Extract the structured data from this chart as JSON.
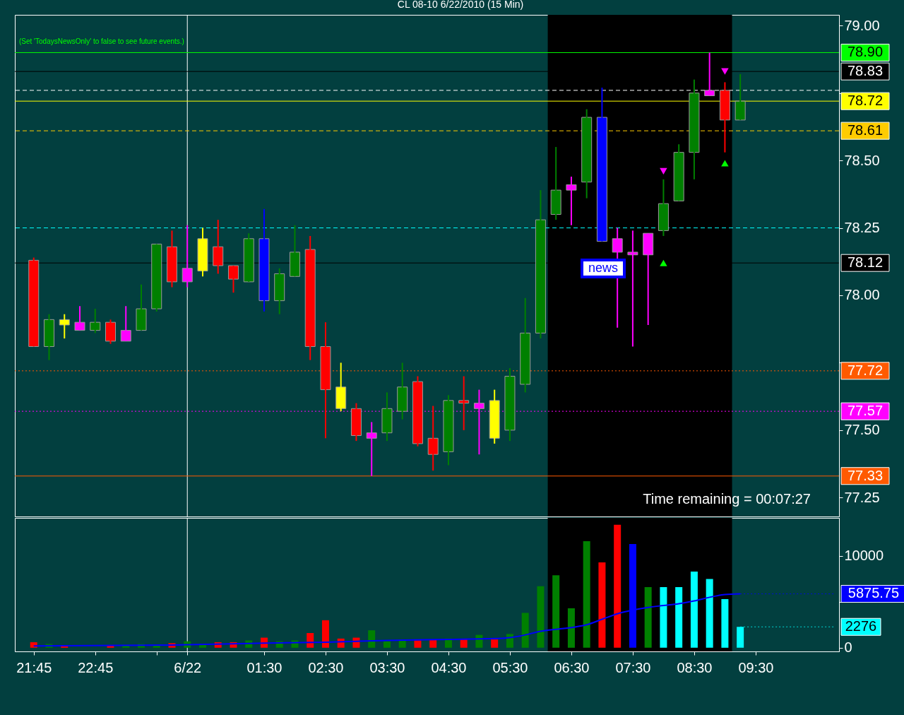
{
  "chart_data": [
    {
      "type": "candlestick",
      "title": "CL 08-10  6/22/2010 (15 Min)",
      "x": [
        "2010-06-21T21:45",
        "2010-06-21T22:00",
        "2010-06-21T22:15",
        "2010-06-21T22:30",
        "2010-06-21T22:45",
        "2010-06-21T23:00",
        "2010-06-21T23:15",
        "2010-06-21T23:30",
        "2010-06-21T23:45",
        "2010-06-22T00:00",
        "2010-06-22T00:15",
        "2010-06-22T00:30",
        "2010-06-22T00:45",
        "2010-06-22T01:00",
        "2010-06-22T01:15",
        "2010-06-22T01:30",
        "2010-06-22T01:45",
        "2010-06-22T02:00",
        "2010-06-22T02:15",
        "2010-06-22T02:30",
        "2010-06-22T02:45",
        "2010-06-22T03:00",
        "2010-06-22T03:15",
        "2010-06-22T03:30",
        "2010-06-22T03:45",
        "2010-06-22T04:00",
        "2010-06-22T04:15",
        "2010-06-22T04:30",
        "2010-06-22T04:45",
        "2010-06-22T05:00",
        "2010-06-22T05:15",
        "2010-06-22T05:30",
        "2010-06-22T05:45",
        "2010-06-22T06:00",
        "2010-06-22T06:15",
        "2010-06-22T06:30",
        "2010-06-22T06:45",
        "2010-06-22T07:00",
        "2010-06-22T07:15",
        "2010-06-22T07:30",
        "2010-06-22T07:45",
        "2010-06-22T08:00",
        "2010-06-22T08:15",
        "2010-06-22T08:30",
        "2010-06-22T08:45",
        "2010-06-22T09:00",
        "2010-06-22T09:15"
      ],
      "ohlc": [
        [
          78.13,
          78.14,
          77.81,
          77.81
        ],
        [
          77.81,
          77.93,
          77.76,
          77.91
        ],
        [
          77.91,
          77.93,
          77.84,
          77.89
        ],
        [
          77.9,
          77.96,
          77.87,
          77.87
        ],
        [
          77.87,
          77.95,
          77.86,
          77.9
        ],
        [
          77.9,
          77.91,
          77.82,
          77.83
        ],
        [
          77.87,
          77.96,
          77.83,
          77.83
        ],
        [
          77.87,
          78.04,
          77.87,
          77.95
        ],
        [
          77.95,
          78.19,
          77.94,
          78.19
        ],
        [
          78.18,
          78.24,
          78.03,
          78.05
        ],
        [
          78.1,
          78.26,
          78.03,
          78.05
        ],
        [
          78.09,
          78.25,
          78.07,
          78.21
        ],
        [
          78.18,
          78.28,
          78.08,
          78.11
        ],
        [
          78.11,
          78.11,
          78.01,
          78.06
        ],
        [
          78.05,
          78.23,
          78.05,
          78.21
        ],
        [
          78.21,
          78.32,
          77.94,
          77.98
        ],
        [
          77.98,
          78.1,
          77.93,
          78.08
        ],
        [
          78.07,
          78.26,
          78.07,
          78.16
        ],
        [
          78.17,
          78.22,
          77.76,
          77.81
        ],
        [
          77.81,
          77.9,
          77.47,
          77.65
        ],
        [
          77.66,
          77.75,
          77.57,
          77.58
        ],
        [
          77.58,
          77.6,
          77.46,
          77.48
        ],
        [
          77.49,
          77.53,
          77.33,
          77.47
        ],
        [
          77.49,
          77.64,
          77.46,
          77.58
        ],
        [
          77.57,
          77.75,
          77.54,
          77.66
        ],
        [
          77.68,
          77.7,
          77.44,
          77.45
        ],
        [
          77.47,
          77.59,
          77.35,
          77.41
        ],
        [
          77.42,
          77.63,
          77.37,
          77.61
        ],
        [
          77.61,
          77.7,
          77.5,
          77.6
        ],
        [
          77.6,
          77.65,
          77.41,
          77.58
        ],
        [
          77.47,
          77.65,
          77.45,
          77.61
        ],
        [
          77.5,
          77.73,
          77.46,
          77.7
        ],
        [
          77.67,
          77.99,
          77.64,
          77.86
        ],
        [
          77.86,
          78.39,
          77.84,
          78.28
        ],
        [
          78.3,
          78.55,
          78.28,
          78.39
        ],
        [
          78.39,
          78.44,
          78.26,
          78.41
        ],
        [
          78.42,
          78.69,
          78.36,
          78.66
        ],
        [
          78.66,
          78.77,
          78.2,
          78.2
        ],
        [
          78.21,
          78.25,
          77.88,
          78.16
        ],
        [
          78.16,
          78.24,
          77.81,
          78.15
        ],
        [
          78.15,
          78.23,
          77.89,
          78.23
        ],
        [
          78.24,
          78.43,
          78.22,
          78.34
        ],
        [
          78.35,
          78.56,
          78.35,
          78.53
        ],
        [
          78.53,
          78.8,
          78.43,
          78.75
        ],
        [
          78.76,
          78.9,
          78.74,
          78.74
        ],
        [
          78.76,
          78.79,
          78.53,
          78.65
        ],
        [
          78.65,
          78.82,
          78.65,
          78.72
        ]
      ],
      "colors": [
        "#ff0000",
        "#008000",
        "#ffff00",
        "#ff00ff",
        "#008000",
        "#ff0000",
        "#ff00ff",
        "#008000",
        "#008000",
        "#ff0000",
        "#ff00ff",
        "#ffff00",
        "#ff0000",
        "#ff0000",
        "#008000",
        "#0000ff",
        "#008000",
        "#008000",
        "#ff0000",
        "#ff0000",
        "#ffff00",
        "#ff0000",
        "#ff00ff",
        "#008000",
        "#008000",
        "#ff0000",
        "#ff0000",
        "#008000",
        "#ff0000",
        "#ff00ff",
        "#ffff00",
        "#008000",
        "#008000",
        "#008000",
        "#008000",
        "#ff00ff",
        "#008000",
        "#0000ff",
        "#ff00ff",
        "#ff00ff",
        "#ff00ff",
        "#008000",
        "#008000",
        "#008000",
        "#ff00ff",
        "#ff0000",
        "#008000"
      ],
      "series": [
        {
          "type": "scatter",
          "marker": "triangle",
          "color": "#00ff00",
          "x": [
            "2010-06-22T08:00",
            "2010-06-22T09:00"
          ],
          "values": [
            78.12,
            78.49
          ]
        },
        {
          "type": "scatter",
          "marker": "triangle-down",
          "color": "#ff00ff",
          "x": [
            "2010-06-22T08:00",
            "2010-06-22T09:00"
          ],
          "values": [
            78.46,
            78.83
          ]
        }
      ],
      "xlim": [
        "2010-06-21T21:30",
        "2010-06-22T10:48"
      ],
      "ylim": [
        77.18,
        79.04
      ],
      "yticks": [
        {
          "value": 77.25,
          "label": "77.25"
        },
        {
          "value": 77.5,
          "label": "77.50"
        },
        {
          "value": 77.75,
          "label": null
        },
        {
          "value": 78,
          "label": "78.00"
        },
        {
          "value": 78.25,
          "label": "78.25"
        },
        {
          "value": 78.5,
          "label": "78.50"
        },
        {
          "value": 78.75,
          "label": null
        },
        {
          "value": 79,
          "label": "79.00"
        }
      ],
      "tick_labels": "y",
      "bands": [
        {
          "axis": "x",
          "from": "2010-06-22T06:07",
          "to": "2010-06-22T09:07",
          "color": "#000000"
        }
      ],
      "ref_lines": [
        {
          "axis": "x",
          "value": "2010-06-22T00:15",
          "color": "#ffffff"
        },
        {
          "axis": "y",
          "value": 78.9,
          "label": "78.90",
          "color": "#00ff00",
          "line_style": "solid"
        },
        {
          "axis": "y",
          "value": 78.83,
          "label": "78.83",
          "color": "#000000",
          "line_style": "solid"
        },
        {
          "axis": "y",
          "value": 78.76,
          "color": "#ffffff",
          "line_style": "dashed"
        },
        {
          "axis": "y",
          "value": 78.72,
          "label": "78.72",
          "color": "#ffff00",
          "line_style": "solid"
        },
        {
          "axis": "y",
          "value": 78.61,
          "label": "78.61",
          "color": "#ffcc00",
          "line_style": "dashed"
        },
        {
          "axis": "y",
          "value": 78.25,
          "color": "#00ffff",
          "line_style": "dashed"
        },
        {
          "axis": "y",
          "value": 78.12,
          "label": "78.12",
          "color": "#000000",
          "line_style": "solid"
        },
        {
          "axis": "y",
          "value": 77.72,
          "label": "77.72",
          "color": "#ff5a00",
          "line_style": "dotted"
        },
        {
          "axis": "y",
          "value": 77.57,
          "label": "77.57",
          "color": "#ff00ff",
          "line_style": "dotted"
        },
        {
          "axis": "y",
          "value": 77.33,
          "label": "77.33",
          "color": "#ff5a00",
          "line_style": "solid"
        }
      ],
      "annotations": [
        "(Set 'TodaysNewsOnly' to false to see future events.)",
        "Time remaining = 00:07:27",
        "news"
      ]
    },
    {
      "type": "bar",
      "x": [
        "2010-06-21T21:45",
        "2010-06-21T22:00",
        "2010-06-21T22:15",
        "2010-06-21T22:30",
        "2010-06-21T22:45",
        "2010-06-21T23:00",
        "2010-06-21T23:15",
        "2010-06-21T23:30",
        "2010-06-21T23:45",
        "2010-06-22T00:00",
        "2010-06-22T00:15",
        "2010-06-22T00:30",
        "2010-06-22T00:45",
        "2010-06-22T01:00",
        "2010-06-22T01:15",
        "2010-06-22T01:30",
        "2010-06-22T01:45",
        "2010-06-22T02:00",
        "2010-06-22T02:15",
        "2010-06-22T02:30",
        "2010-06-22T02:45",
        "2010-06-22T03:00",
        "2010-06-22T03:15",
        "2010-06-22T03:30",
        "2010-06-22T03:45",
        "2010-06-22T04:00",
        "2010-06-22T04:15",
        "2010-06-22T04:30",
        "2010-06-22T04:45",
        "2010-06-22T05:00",
        "2010-06-22T05:15",
        "2010-06-22T05:30",
        "2010-06-22T05:45",
        "2010-06-22T06:00",
        "2010-06-22T06:15",
        "2010-06-22T06:30",
        "2010-06-22T06:45",
        "2010-06-22T07:00",
        "2010-06-22T07:15",
        "2010-06-22T07:30",
        "2010-06-22T07:45",
        "2010-06-22T08:00",
        "2010-06-22T08:15",
        "2010-06-22T08:30",
        "2010-06-22T08:45",
        "2010-06-22T09:00",
        "2010-06-22T09:15"
      ],
      "series": [
        {
          "type": "bar",
          "values": [
            600,
            400,
            200,
            null,
            null,
            300,
            300,
            400,
            300,
            500,
            700,
            300,
            600,
            600,
            800,
            1100,
            700,
            800,
            1600,
            3000,
            1000,
            1100,
            1900,
            700,
            900,
            800,
            900,
            1000,
            900,
            1400,
            900,
            1500,
            3800,
            6700,
            7900,
            4300,
            11600,
            9300,
            13400,
            11300,
            6600,
            6600,
            6600,
            8300,
            7500,
            5300,
            2276
          ],
          "colors": [
            "#ff0000",
            "#008000",
            "#ff0000",
            "#008000",
            "#008000",
            "#ff0000",
            "#008000",
            "#008000",
            "#008000",
            "#ff0000",
            "#008000",
            "#008000",
            "#ff0000",
            "#ff0000",
            "#008000",
            "#ff0000",
            "#008000",
            "#008000",
            "#ff0000",
            "#ff0000",
            "#ff0000",
            "#ff0000",
            "#008000",
            "#008000",
            "#008000",
            "#ff0000",
            "#ff0000",
            "#008000",
            "#ff0000",
            "#008000",
            "#ff0000",
            "#008000",
            "#008000",
            "#008000",
            "#008000",
            "#008000",
            "#008000",
            "#ff0000",
            "#ff0000",
            "#0000ff",
            "#008000",
            "#00ffff",
            "#00ffff",
            "#00ffff",
            "#00ffff",
            "#00ffff",
            "#00ffff"
          ]
        },
        {
          "type": "line",
          "color": "#0000ff",
          "x": [
            "2010-06-21T21:45",
            "2010-06-22T00:00",
            "2010-06-22T01:30",
            "2010-06-22T02:30",
            "2010-06-22T03:30",
            "2010-06-22T04:30",
            "2010-06-22T05:15",
            "2010-06-22T05:30",
            "2010-06-22T05:45",
            "2010-06-22T06:00",
            "2010-06-22T06:30",
            "2010-06-22T06:45",
            "2010-06-22T07:00",
            "2010-06-22T07:15",
            "2010-06-22T07:30",
            "2010-06-22T07:45",
            "2010-06-22T08:00",
            "2010-06-22T08:15",
            "2010-06-22T08:30",
            "2010-06-22T08:45",
            "2010-06-22T09:00",
            "2010-06-22T09:15"
          ],
          "values": [
            200,
            300,
            500,
            600,
            800,
            900,
            1000,
            1100,
            1400,
            1800,
            2200,
            2500,
            3100,
            3700,
            4100,
            4400,
            4600,
            4800,
            5100,
            5500,
            5800,
            5875.75
          ]
        }
      ],
      "xlim": [
        "2010-06-21T21:30",
        "2010-06-22T10:48"
      ],
      "ylim": [
        -400,
        14150
      ],
      "yticks": [
        {
          "value": 0,
          "label": "0"
        },
        {
          "value": 5000,
          "label": null
        },
        {
          "value": 10000,
          "label": "10000"
        }
      ],
      "xticks": [
        {
          "value": "2010-06-21T21:45",
          "label": "21:45"
        },
        {
          "value": "2010-06-21T22:45",
          "label": "22:45"
        },
        {
          "value": "2010-06-21T23:45",
          "label": null
        },
        {
          "value": "2010-06-22T00:15",
          "label": "6/22"
        },
        {
          "value": "2010-06-22T01:30",
          "label": "01:30"
        },
        {
          "value": "2010-06-22T02:30",
          "label": "02:30"
        },
        {
          "value": "2010-06-22T03:30",
          "label": "03:30"
        },
        {
          "value": "2010-06-22T04:30",
          "label": "04:30"
        },
        {
          "value": "2010-06-22T05:30",
          "label": "05:30"
        },
        {
          "value": "2010-06-22T06:30",
          "label": "06:30"
        },
        {
          "value": "2010-06-22T07:30",
          "label": "07:30"
        },
        {
          "value": "2010-06-22T08:30",
          "label": "08:30"
        },
        {
          "value": "2010-06-22T09:30",
          "label": "09:30"
        }
      ],
      "bands": [
        {
          "axis": "x",
          "from": "2010-06-22T06:07",
          "to": "2010-06-22T09:07",
          "color": "#000000"
        }
      ],
      "ref_lines": [
        {
          "axis": "x",
          "value": "2010-06-22T00:15",
          "color": "#ffffff"
        }
      ],
      "annotations": [
        {
          "text": "2276",
          "x": "2010-06-22T09:15",
          "y": 2276
        },
        {
          "text": "5875.75",
          "x": "2010-06-22T09:15",
          "y": 5875.75
        }
      ]
    }
  ]
}
